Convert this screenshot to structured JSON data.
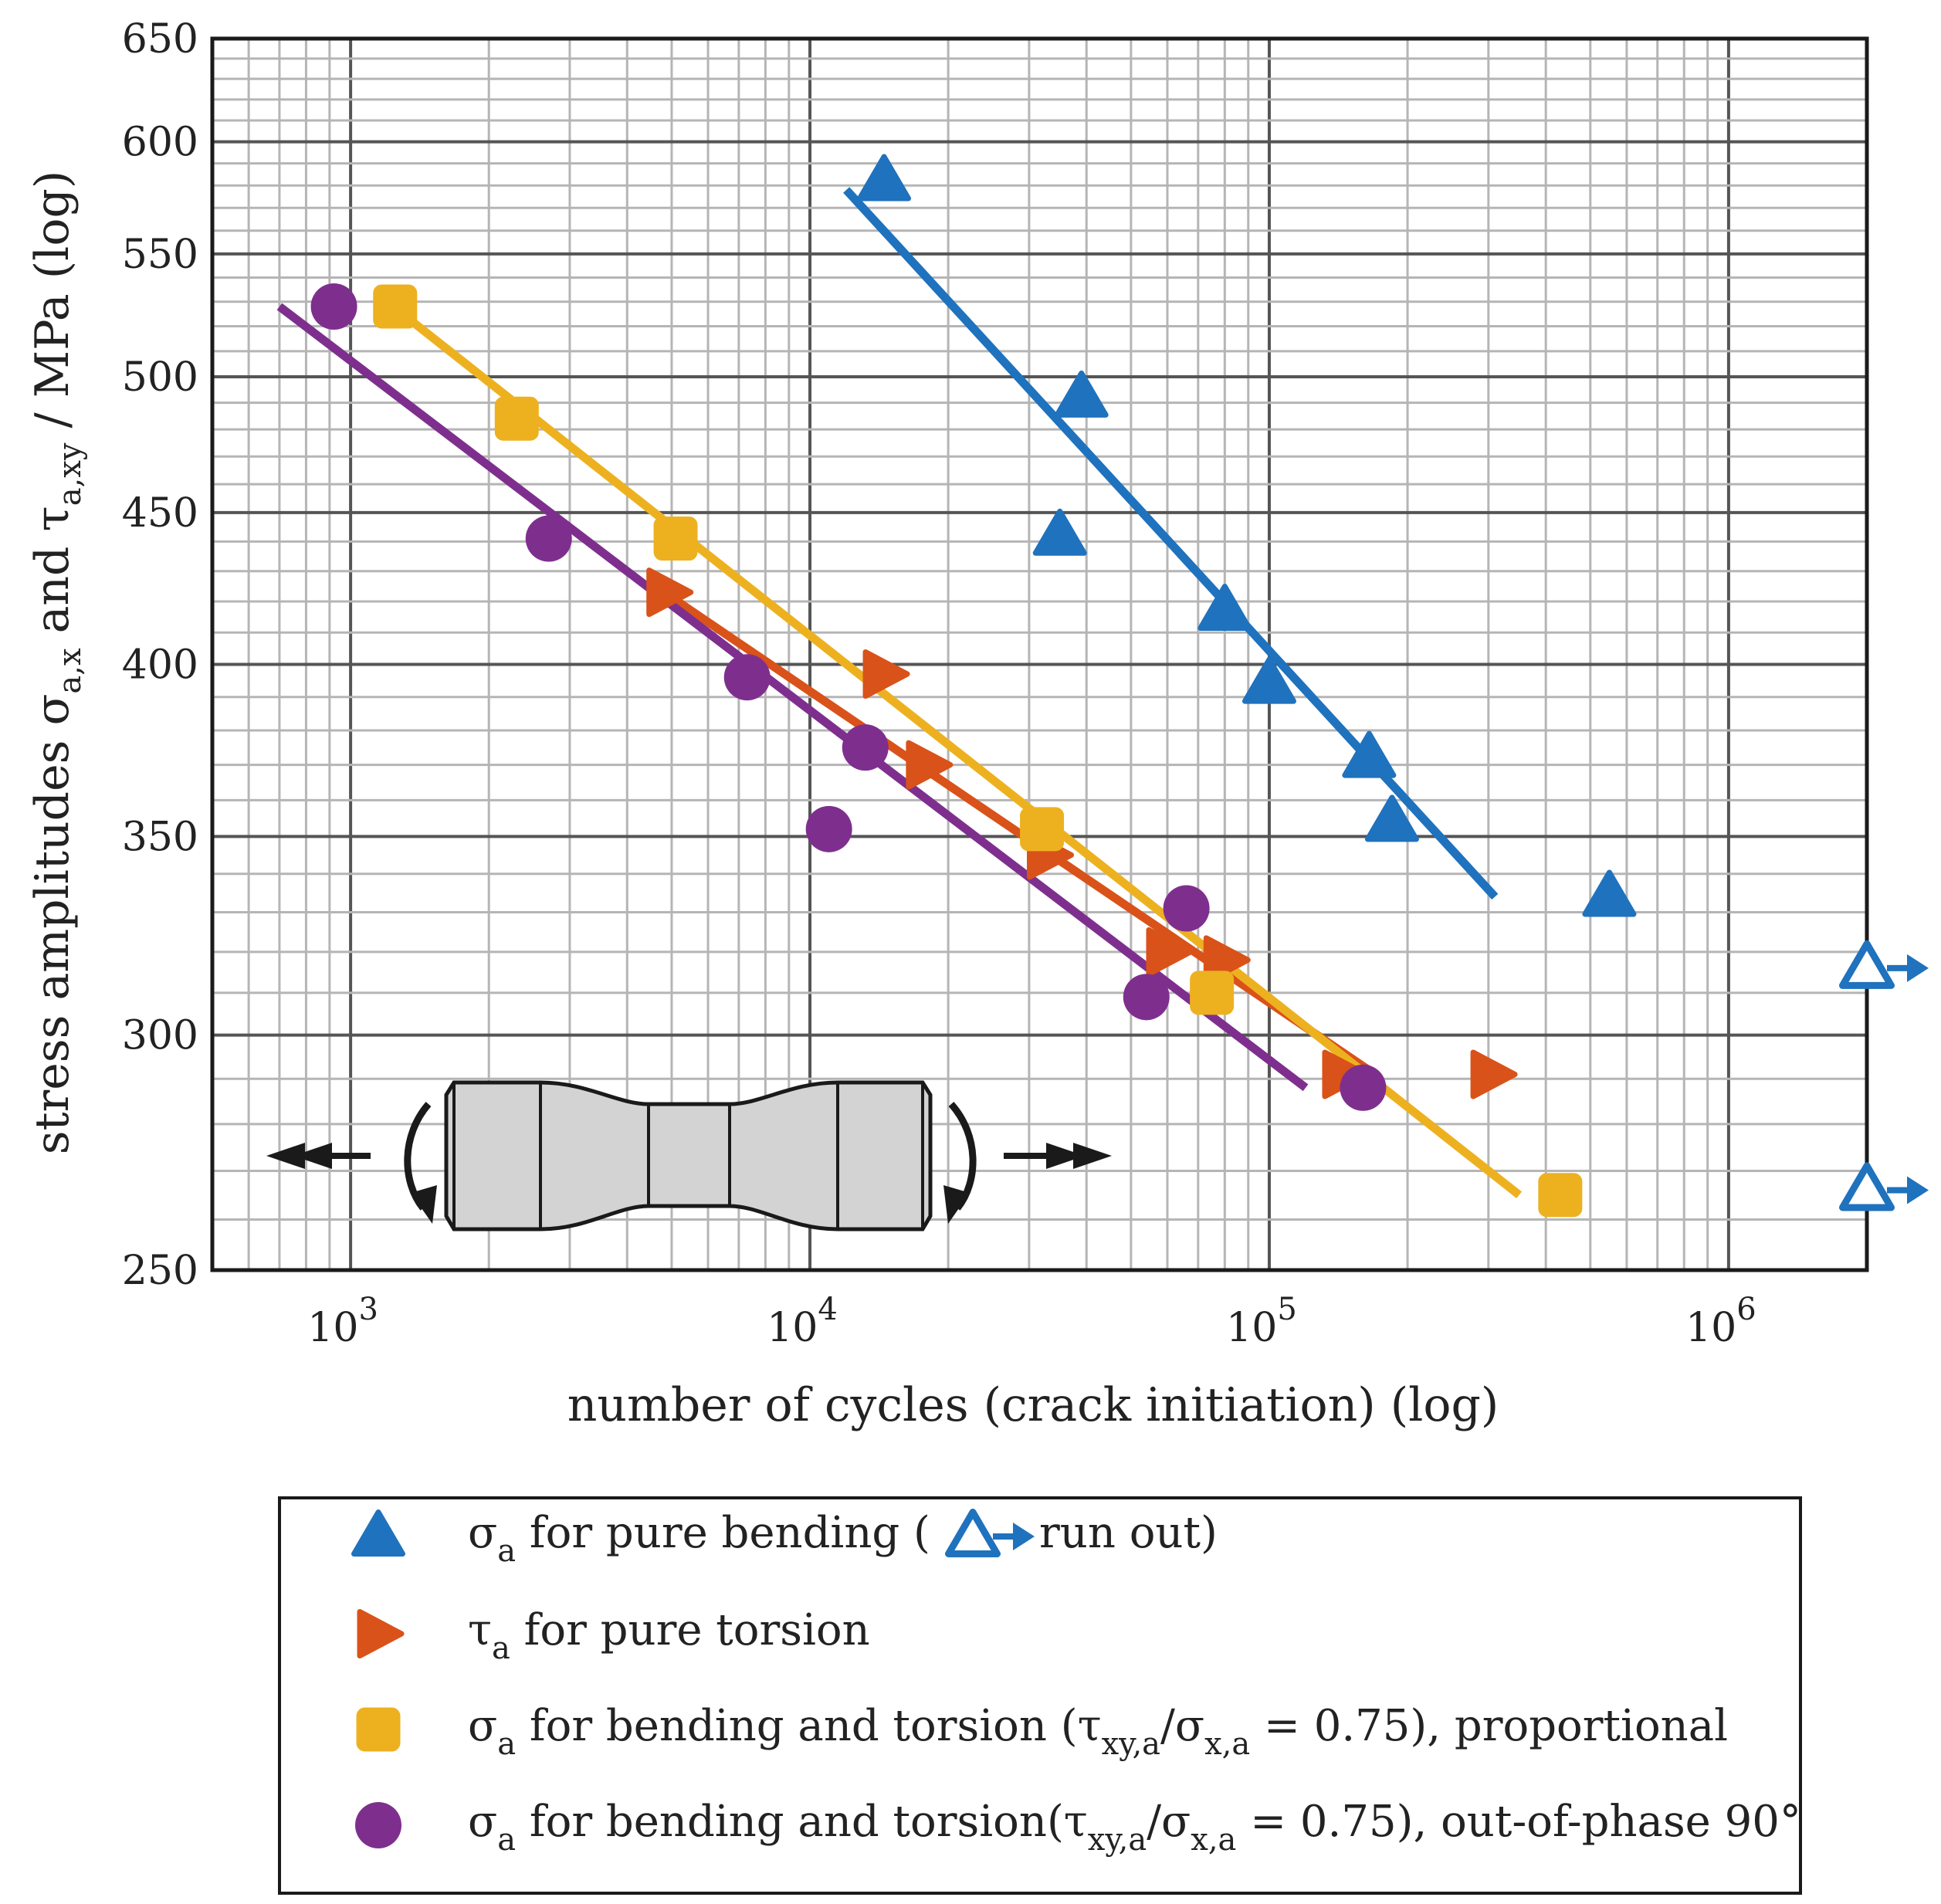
{
  "chart_data": {
    "type": "scatter",
    "x_scale": "log",
    "y_scale": "log",
    "xlim": [
      500,
      2000000
    ],
    "ylim": [
      250,
      650
    ],
    "grid": true,
    "xlabel": "number of cycles (crack initiation) (log)",
    "ylabel_parts": {
      "t1": "stress amplitudes σ",
      "s1": "a,x",
      "t2": " and τ",
      "s2": "a,xy",
      "t3": " / MPa (log)"
    },
    "y_ticks": [
      250,
      300,
      350,
      400,
      450,
      500,
      550,
      600,
      650
    ],
    "x_tick_labels": [
      {
        "value": 1000,
        "base": "10",
        "exp": "3"
      },
      {
        "value": 10000,
        "base": "10",
        "exp": "4"
      },
      {
        "value": 100000,
        "base": "10",
        "exp": "5"
      },
      {
        "value": 1000000,
        "base": "10",
        "exp": "6"
      }
    ],
    "legend_position": "below",
    "series": [
      {
        "key": "bending",
        "marker": "triangle",
        "color": "#1f72bd",
        "legend": {
          "symbol": "σ",
          "sub": "a",
          "text": " for pure bending (",
          "runout_text": "run out)"
        },
        "points": [
          [
            14500,
            582
          ],
          [
            39000,
            492
          ],
          [
            35000,
            442
          ],
          [
            80000,
            417
          ],
          [
            100000,
            394
          ],
          [
            165000,
            372
          ],
          [
            185000,
            354
          ],
          [
            550000,
            334
          ]
        ],
        "runouts": [
          [
            2000000,
            316
          ],
          [
            2000000,
            266
          ]
        ],
        "fit": [
          [
            12000,
            578
          ],
          [
            310000,
            334
          ]
        ]
      },
      {
        "key": "torsion",
        "marker": "triangle-right",
        "color": "#d95219",
        "legend": {
          "symbol": "τ",
          "sub": "a",
          "text": " for pure torsion"
        },
        "points": [
          [
            4900,
            423
          ],
          [
            14500,
            397
          ],
          [
            18000,
            370
          ],
          [
            33000,
            345
          ],
          [
            60000,
            320
          ],
          [
            80000,
            318
          ],
          [
            145000,
            291
          ],
          [
            305000,
            291
          ]
        ],
        "fit": [
          [
            4600,
            425
          ],
          [
            170000,
            291
          ]
        ]
      },
      {
        "key": "proportional",
        "marker": "square",
        "color": "#edb120",
        "legend": {
          "symbol": "σ",
          "sub": "a",
          "text1": " for bending and torsion (τ",
          "sub2": "xy,a",
          "text2": "/σ",
          "sub3": "x,a",
          "text3": " = 0.75), proportional"
        },
        "points": [
          [
            1250,
            528
          ],
          [
            2300,
            484
          ],
          [
            5100,
            441
          ],
          [
            32000,
            352
          ],
          [
            75000,
            310
          ],
          [
            430000,
            265
          ]
        ],
        "fit": [
          [
            1200,
            530
          ],
          [
            350000,
            265
          ]
        ]
      },
      {
        "key": "out_of_phase",
        "marker": "circle",
        "color": "#7e2f8e",
        "legend": {
          "symbol": "σ",
          "sub": "a",
          "text1": " for bending and torsion(τ",
          "sub2": "xy,a",
          "text2": "/σ",
          "sub3": "x,a",
          "text3": " = 0.75), out-of-phase 90°"
        },
        "points": [
          [
            920,
            528
          ],
          [
            2700,
            441
          ],
          [
            7300,
            396
          ],
          [
            13200,
            375
          ],
          [
            11000,
            352
          ],
          [
            66000,
            331
          ],
          [
            54000,
            309
          ],
          [
            160000,
            288
          ]
        ],
        "fit": [
          [
            700,
            528
          ],
          [
            120000,
            288
          ]
        ]
      }
    ]
  }
}
